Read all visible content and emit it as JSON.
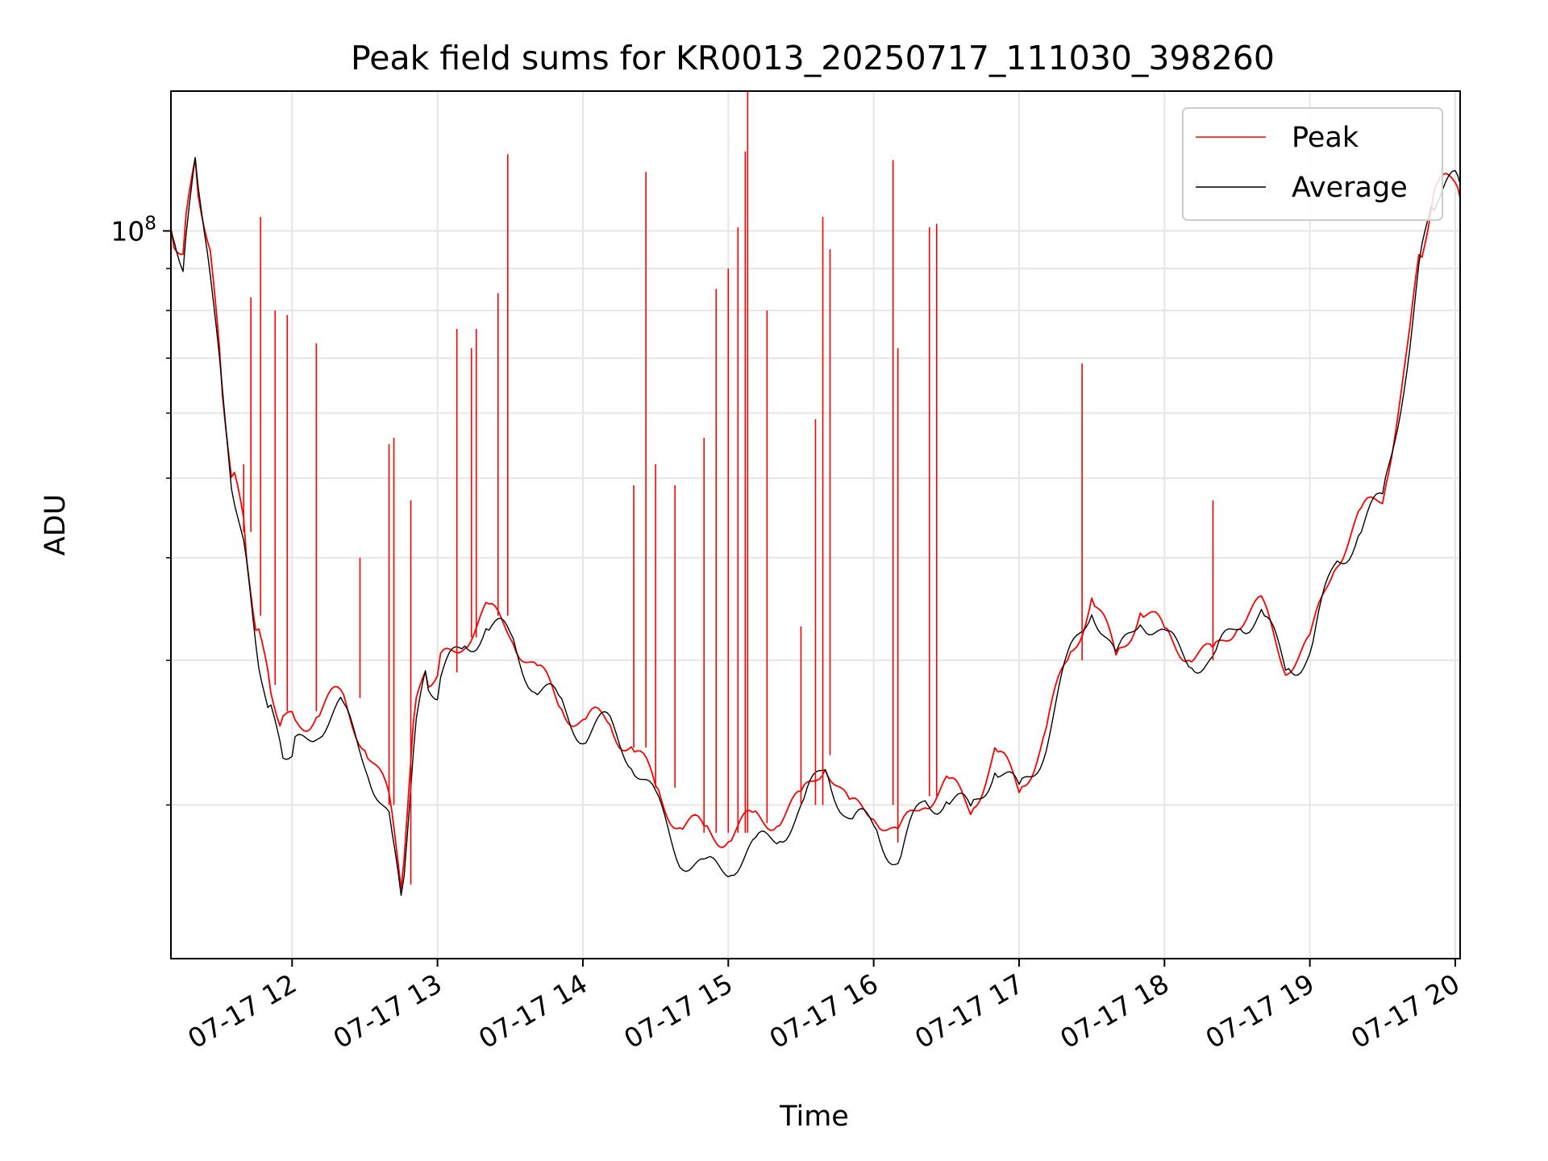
{
  "chart_data": {
    "type": "line",
    "title": "Peak field sums for KR0013_20250717_111030_398260",
    "xlabel": "Time",
    "ylabel": "ADU",
    "x_axis_type": "time",
    "xlim": [
      "2025-07-17 11:10",
      "2025-07-17 20:02"
    ],
    "ylim": [
      13000000,
      148000000
    ],
    "y_scale": "log",
    "grid": true,
    "legend_position": "top-right",
    "x_ticks": [
      {
        "value": "2025-07-17 12:00",
        "label": "07-17 12"
      },
      {
        "value": "2025-07-17 13:00",
        "label": "07-17 13"
      },
      {
        "value": "2025-07-17 14:00",
        "label": "07-17 14"
      },
      {
        "value": "2025-07-17 15:00",
        "label": "07-17 15"
      },
      {
        "value": "2025-07-17 16:00",
        "label": "07-17 16"
      },
      {
        "value": "2025-07-17 17:00",
        "label": "07-17 17"
      },
      {
        "value": "2025-07-17 18:00",
        "label": "07-17 18"
      },
      {
        "value": "2025-07-17 19:00",
        "label": "07-17 19"
      },
      {
        "value": "2025-07-17 20:00",
        "label": "07-17 20"
      }
    ],
    "y_major_ticks": [
      {
        "value": 100000000,
        "base": "10",
        "exponent": "8"
      }
    ],
    "y_minor_ticks": [
      20000000,
      30000000,
      40000000,
      50000000,
      60000000,
      70000000,
      80000000,
      90000000
    ],
    "x_times": [
      "11:10",
      "11:15",
      "11:20",
      "11:25",
      "11:30",
      "11:35",
      "11:40",
      "11:45",
      "11:50",
      "11:55",
      "12:00",
      "12:10",
      "12:20",
      "12:30",
      "12:40",
      "12:45",
      "12:50",
      "12:55",
      "13:00",
      "13:10",
      "13:20",
      "13:30",
      "13:40",
      "13:50",
      "14:00",
      "14:10",
      "14:20",
      "14:30",
      "14:40",
      "14:50",
      "15:00",
      "15:10",
      "15:20",
      "15:30",
      "15:40",
      "15:50",
      "16:00",
      "16:10",
      "16:20",
      "16:30",
      "16:40",
      "16:50",
      "17:00",
      "17:10",
      "17:20",
      "17:30",
      "17:40",
      "17:50",
      "18:00",
      "18:10",
      "18:20",
      "18:30",
      "18:40",
      "18:50",
      "19:00",
      "19:10",
      "19:20",
      "19:30",
      "19:40",
      "19:45",
      "19:50",
      "20:00",
      "20:02"
    ],
    "series": [
      {
        "name": "Peak",
        "color": "#ff0000",
        "values": [
          101000000,
          95000000,
          120000000,
          100000000,
          70000000,
          52000000,
          43000000,
          34000000,
          28000000,
          26000000,
          25000000,
          26000000,
          27000000,
          24000000,
          20000000,
          16000000,
          25000000,
          29000000,
          29000000,
          32000000,
          34000000,
          33000000,
          29000000,
          27000000,
          25000000,
          25500000,
          23500000,
          21000000,
          19000000,
          18500000,
          18500000,
          19000000,
          19500000,
          20000000,
          23000000,
          19500000,
          20000000,
          18000000,
          20500000,
          21000000,
          20000000,
          23000000,
          21000000,
          24000000,
          30000000,
          36000000,
          30000000,
          35000000,
          32000000,
          31000000,
          30000000,
          34000000,
          34500000,
          30000000,
          31000000,
          40000000,
          44000000,
          48000000,
          70000000,
          90000000,
          110000000,
          115000000,
          112000000
        ]
      },
      {
        "name": "Average",
        "color": "#000000",
        "values": [
          100000000,
          93000000,
          118000000,
          98000000,
          68000000,
          50000000,
          41000000,
          32000000,
          26000000,
          24000000,
          23000000,
          25000000,
          26000000,
          23000000,
          19000000,
          15000000,
          24000000,
          28000000,
          28000000,
          31000000,
          33000000,
          32000000,
          28000000,
          26500000,
          24500000,
          25000000,
          23000000,
          20000000,
          17500000,
          16500000,
          17000000,
          17500000,
          18500000,
          19500000,
          22500000,
          19000000,
          19000000,
          17000000,
          20000000,
          20500000,
          19500000,
          22500000,
          20500000,
          23500000,
          29500000,
          35500000,
          29500000,
          34500000,
          31500000,
          30500000,
          29500000,
          33500000,
          34000000,
          29500000,
          30500000,
          39000000,
          43000000,
          47000000,
          69000000,
          89000000,
          109000000,
          114000000,
          111000000
        ]
      }
    ],
    "spikes": {
      "series": "Peak",
      "points": [
        {
          "x": "11:40",
          "y": 52000000
        },
        {
          "x": "11:43",
          "y": 83000000
        },
        {
          "x": "11:47",
          "y": 104000000
        },
        {
          "x": "11:53",
          "y": 80000000
        },
        {
          "x": "11:58",
          "y": 79000000
        },
        {
          "x": "12:10",
          "y": 73000000
        },
        {
          "x": "12:28",
          "y": 40000000
        },
        {
          "x": "12:40",
          "y": 55000000
        },
        {
          "x": "12:42",
          "y": 56000000
        },
        {
          "x": "12:49",
          "y": 47000000
        },
        {
          "x": "13:08",
          "y": 76000000
        },
        {
          "x": "13:14",
          "y": 72000000
        },
        {
          "x": "13:16",
          "y": 76000000
        },
        {
          "x": "13:25",
          "y": 84000000
        },
        {
          "x": "13:29",
          "y": 124000000
        },
        {
          "x": "14:21",
          "y": 49000000
        },
        {
          "x": "14:26",
          "y": 118000000
        },
        {
          "x": "14:30",
          "y": 52000000
        },
        {
          "x": "14:38",
          "y": 49000000
        },
        {
          "x": "14:50",
          "y": 56000000
        },
        {
          "x": "14:55",
          "y": 85000000
        },
        {
          "x": "15:00",
          "y": 90000000
        },
        {
          "x": "15:04",
          "y": 101000000
        },
        {
          "x": "15:07",
          "y": 125000000
        },
        {
          "x": "15:08",
          "y": 148000000
        },
        {
          "x": "15:16",
          "y": 80000000
        },
        {
          "x": "15:30",
          "y": 33000000
        },
        {
          "x": "15:36",
          "y": 59000000
        },
        {
          "x": "15:39",
          "y": 104000000
        },
        {
          "x": "15:42",
          "y": 95000000
        },
        {
          "x": "16:08",
          "y": 122000000
        },
        {
          "x": "16:10",
          "y": 72000000
        },
        {
          "x": "16:23",
          "y": 101000000
        },
        {
          "x": "16:26",
          "y": 102000000
        },
        {
          "x": "17:26",
          "y": 69000000
        },
        {
          "x": "18:20",
          "y": 47000000
        }
      ]
    },
    "legend": [
      {
        "label": "Peak",
        "color": "#ff0000"
      },
      {
        "label": "Average",
        "color": "#000000"
      }
    ]
  }
}
